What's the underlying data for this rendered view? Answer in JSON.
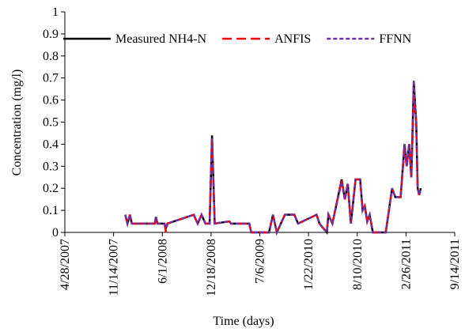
{
  "chart_data": {
    "type": "line",
    "x_label": "Time (days)",
    "y_label": "Concentration (mg/l)",
    "x": [
      "1/1/2008",
      "1/10/2008",
      "1/20/2008",
      "1/28/2008",
      "5/1/2008",
      "5/6/2008",
      "5/12/2008",
      "6/10/2008",
      "6/16/2008",
      "6/22/2008",
      "10/8/2008",
      "10/24/2008",
      "11/9/2008",
      "11/25/2008",
      "12/12/2008",
      "12/22/2008",
      "1/2/2009",
      "3/3/2009",
      "3/10/2009",
      "5/24/2009",
      "6/1/2009",
      "8/13/2009",
      "8/29/2009",
      "9/14/2009",
      "10/17/2009",
      "11/25/2009",
      "12/10/2009",
      "2/24/2010",
      "3/8/2010",
      "4/7/2010",
      "4/14/2010",
      "4/30/2010",
      "6/7/2010",
      "6/20/2010",
      "7/2/2010",
      "7/15/2010",
      "8/3/2010",
      "8/22/2010",
      "9/1/2010",
      "9/10/2010",
      "9/20/2010",
      "9/30/2010",
      "10/13/2010",
      "12/5/2010",
      "12/31/2010",
      "1/13/2011",
      "2/4/2011",
      "2/20/2011",
      "3/1/2011",
      "3/11/2011",
      "3/20/2011",
      "3/30/2011",
      "4/9/2011",
      "4/15/2011",
      "4/21/2011",
      "4/28/2011"
    ],
    "series": [
      {
        "name": "Measured NH4-N",
        "color": "#000000",
        "line_style": "solid",
        "values": [
          0.08,
          0.04,
          0.08,
          0.04,
          0.04,
          0.07,
          0.04,
          0.04,
          0.02,
          0.04,
          0.08,
          0.04,
          0.08,
          0.04,
          0.04,
          0.44,
          0.04,
          0.05,
          0.04,
          0.04,
          0,
          0,
          0.08,
          0,
          0.08,
          0.08,
          0.04,
          0.08,
          0.04,
          0,
          0.08,
          0.04,
          0.24,
          0.15,
          0.22,
          0.04,
          0.24,
          0.24,
          0.1,
          0.12,
          0.05,
          0.08,
          0,
          0,
          0.2,
          0.16,
          0.16,
          0.4,
          0.3,
          0.4,
          0.25,
          0.68,
          0.5,
          0.2,
          0.17,
          0.2
        ]
      },
      {
        "name": "ANFIS",
        "color": "#ff0000",
        "line_style": "long-dash",
        "values": [
          0.08,
          0.04,
          0.08,
          0.04,
          0.04,
          0.07,
          0.04,
          0.04,
          0,
          0.04,
          0.08,
          0.04,
          0.08,
          0.04,
          0.04,
          0.42,
          0.04,
          0.05,
          0.04,
          0.04,
          0,
          0,
          0.08,
          0,
          0.08,
          0.08,
          0.04,
          0.08,
          0.04,
          0,
          0.08,
          0.04,
          0.24,
          0.15,
          0.22,
          0.04,
          0.24,
          0.24,
          0.1,
          0.12,
          0.05,
          0.08,
          0,
          0,
          0.2,
          0.16,
          0.16,
          0.38,
          0.3,
          0.4,
          0.25,
          0.62,
          0.5,
          0.2,
          0.17,
          0.2
        ]
      },
      {
        "name": "FFNN",
        "color": "#7030a0",
        "line_style": "short-dash",
        "values": [
          0.08,
          0.04,
          0.08,
          0.04,
          0.04,
          0.07,
          0.04,
          0.04,
          0.02,
          0.04,
          0.08,
          0.04,
          0.08,
          0.04,
          0.04,
          0.43,
          0.04,
          0.05,
          0.04,
          0.04,
          0,
          0,
          0.08,
          0,
          0.08,
          0.08,
          0.04,
          0.08,
          0.04,
          0,
          0.08,
          0.04,
          0.23,
          0.15,
          0.22,
          0.04,
          0.24,
          0.24,
          0.1,
          0.12,
          0.05,
          0.08,
          0,
          0,
          0.2,
          0.16,
          0.16,
          0.4,
          0.3,
          0.4,
          0.25,
          0.69,
          0.5,
          0.2,
          0.17,
          0.2
        ]
      }
    ],
    "xlim": [
      "4/28/2007",
      "9/14/2011"
    ],
    "xticks": [
      "4/28/2007",
      "11/14/2007",
      "6/1/2008",
      "12/18/2008",
      "7/6/2009",
      "1/22/2010",
      "8/10/2010",
      "2/26/2011",
      "9/14/2011"
    ],
    "ylim": [
      0,
      1
    ],
    "yticks": [
      0,
      0.1,
      0.2,
      0.3,
      0.4,
      0.5,
      0.6,
      0.7,
      0.8,
      0.9,
      1
    ],
    "legend": "top",
    "grid": false
  }
}
